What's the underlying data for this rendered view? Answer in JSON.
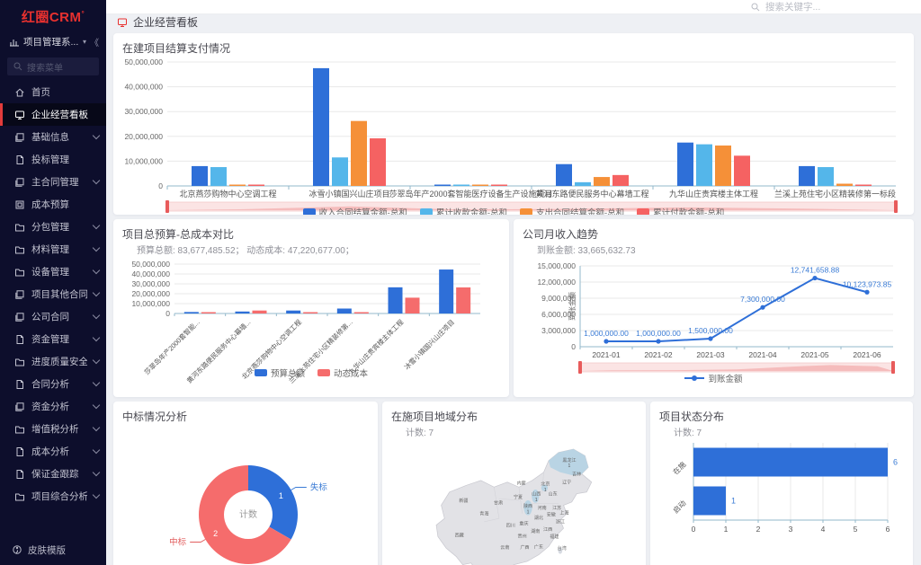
{
  "app": {
    "logo_text": "红圈CRM",
    "logo_degree": "°"
  },
  "sidebar": {
    "workspace": {
      "label": "项目管理系...",
      "collapse_glyph": "《"
    },
    "search_placeholder": "搜索菜单",
    "items": [
      {
        "label": "首页",
        "icon": "home-icon",
        "arrow": false,
        "active": false
      },
      {
        "label": "企业经营看板",
        "icon": "dashboard-icon",
        "arrow": false,
        "active": true
      },
      {
        "label": "基础信息",
        "icon": "layers-icon",
        "arrow": true,
        "active": false
      },
      {
        "label": "投标管理",
        "icon": "doc-icon",
        "arrow": false,
        "active": false
      },
      {
        "label": "主合同管理",
        "icon": "layers-icon",
        "arrow": true,
        "active": false
      },
      {
        "label": "成本预算",
        "icon": "budget-icon",
        "arrow": false,
        "active": false
      },
      {
        "label": "分包管理",
        "icon": "folder-icon",
        "arrow": true,
        "active": false
      },
      {
        "label": "材料管理",
        "icon": "folder-icon",
        "arrow": true,
        "active": false
      },
      {
        "label": "设备管理",
        "icon": "folder-icon",
        "arrow": true,
        "active": false
      },
      {
        "label": "项目其他合同",
        "icon": "layers-icon",
        "arrow": true,
        "active": false
      },
      {
        "label": "公司合同",
        "icon": "layers-icon",
        "arrow": true,
        "active": false
      },
      {
        "label": "资金管理",
        "icon": "doc-icon",
        "arrow": true,
        "active": false
      },
      {
        "label": "进度质量安全",
        "icon": "folder-icon",
        "arrow": true,
        "active": false
      },
      {
        "label": "合同分析",
        "icon": "doc-icon",
        "arrow": true,
        "active": false
      },
      {
        "label": "资金分析",
        "icon": "layers-icon",
        "arrow": true,
        "active": false
      },
      {
        "label": "增值税分析",
        "icon": "folder-icon",
        "arrow": true,
        "active": false
      },
      {
        "label": "成本分析",
        "icon": "doc-icon",
        "arrow": true,
        "active": false
      },
      {
        "label": "保证金跟踪",
        "icon": "doc-icon",
        "arrow": true,
        "active": false
      },
      {
        "label": "项目综合分析",
        "icon": "folder-icon",
        "arrow": true,
        "active": false
      }
    ],
    "footer": {
      "label": "皮肤模版",
      "icon": "palette-icon"
    }
  },
  "header": {
    "search_placeholder": "搜索关键字..."
  },
  "tab": {
    "label": "企业经营看板",
    "icon": "dashboard-icon"
  },
  "colors": {
    "blue": "#2e6fd8",
    "light_blue": "#54b6ea",
    "orange": "#f59038",
    "red": "#f56262",
    "pink_zoom": "#f9d9d9",
    "zoom_handle": "#e85b5b",
    "axis": "#93b9cb",
    "grid": "#e8e8e8",
    "sidebar_bg": "#0d0e2c",
    "active_red": "#e23b3b",
    "map_base": "#e2e2e6",
    "map_hl": "#b9d4e4"
  },
  "chart_data": [
    {
      "type": "bar",
      "title": "在建项目结算支付情况",
      "categories": [
        "北京燕莎购物中心空调工程",
        "冰雪小镇国兴山庄项目",
        "莎翠岛年产2000套智能医疗设备生产设施项目",
        "黄河东路便民服务中心幕墙工程",
        "九华山庄贵宾楼主体工程",
        "兰溪上苑住宅小区精装修第一标段"
      ],
      "series": [
        {
          "name": "收入合同结算金额-总和",
          "color": "#2e6fd8",
          "values": [
            8000000,
            47500000,
            200000,
            8800000,
            17500000,
            8000000
          ]
        },
        {
          "name": "累计收款金额-总和",
          "color": "#54b6ea",
          "values": [
            7600000,
            11500000,
            200000,
            1500000,
            16800000,
            7600000
          ]
        },
        {
          "name": "支出合同结算金额-总和",
          "color": "#f59038",
          "values": [
            500000,
            26200000,
            200000,
            3600000,
            16300000,
            900000
          ]
        },
        {
          "name": "累计付款金额-总和",
          "color": "#f56262",
          "values": [
            150000,
            19200000,
            200000,
            4400000,
            12200000,
            200000
          ]
        }
      ],
      "ylim": [
        0,
        50000000
      ],
      "ystep": 10000000,
      "grid": true,
      "datazoom": true,
      "legend_position": "bottom"
    },
    {
      "type": "bar",
      "title": "项目总预算-总成本对比",
      "subtitle": "预算总额: 83,677,485.52；  动态成本: 47,220,677.00；",
      "categories": [
        "莎翠岛年产2000套智能...",
        "黄河东路便民服务中心幕墙...",
        "北京燕莎购物中心空调工程",
        "兰溪上苑住宅小区精装修第...",
        "九华山庄贵宾楼主体工程",
        "冰雪小镇国兴山庄项目"
      ],
      "series": [
        {
          "name": "预算总额",
          "color": "#2e6fd8",
          "values": [
            1500000,
            2000000,
            3000000,
            5000000,
            26500000,
            44500000
          ]
        },
        {
          "name": "动态成本",
          "color": "#f56c6c",
          "values": [
            300000,
            3000000,
            500000,
            1000000,
            16000000,
            26400000
          ]
        }
      ],
      "ylim": [
        0,
        50000000
      ],
      "ystep": 10000000,
      "grid": true,
      "rotated_labels": true,
      "legend_position": "bottom"
    },
    {
      "type": "line",
      "title": "公司月收入趋势",
      "subtitle": "到账金额: 33,665,632.73",
      "x": [
        "2021-01",
        "2021-02",
        "2021-03",
        "2021-04",
        "2021-05",
        "2021-06"
      ],
      "series": [
        {
          "name": "到账金额",
          "color": "#2e6fd8",
          "values": [
            1000000.0,
            1000000.0,
            1500000.0,
            7300000.0,
            12741658.88,
            10123973.85
          ],
          "labels": [
            "1,000,000.00",
            "1,000,000.00",
            "1,500,000.00",
            "7,300,000.00",
            "12,741,658.88",
            "10,123,973.85"
          ]
        }
      ],
      "ylabel": "到账金额",
      "ylim": [
        0,
        15000000
      ],
      "ystep": 3000000,
      "grid": true,
      "datazoom": true,
      "legend_position": "bottom"
    },
    {
      "type": "pie",
      "title": "中标情况分析",
      "center_label": "计数",
      "slices": [
        {
          "name": "失标",
          "value": 1,
          "color": "#2e6fd8",
          "label_color": "#3a7bd5"
        },
        {
          "name": "中标",
          "value": 2,
          "color": "#f56c6c",
          "label_color": "#e25f5f"
        }
      ]
    },
    {
      "type": "map",
      "title": "在施项目地域分布",
      "subtitle": "计数: 7",
      "regions": [
        {
          "name": "新疆",
          "x": 55,
          "y": 76
        },
        {
          "name": "西藏",
          "x": 50,
          "y": 118
        },
        {
          "name": "青海",
          "x": 80,
          "y": 92
        },
        {
          "name": "甘肃",
          "x": 97,
          "y": 79
        },
        {
          "name": "内蒙",
          "x": 125,
          "y": 55
        },
        {
          "name": "黑龙江",
          "x": 183,
          "y": 27,
          "value": 1,
          "highlighted": true
        },
        {
          "name": "吉林",
          "x": 192,
          "y": 44
        },
        {
          "name": "辽宁",
          "x": 180,
          "y": 54
        },
        {
          "name": "北京",
          "x": 154,
          "y": 56,
          "value": 1,
          "highlighted": true
        },
        {
          "name": "山西",
          "x": 143,
          "y": 68,
          "value": 1,
          "highlighted": true
        },
        {
          "name": "陕西",
          "x": 133,
          "y": 83,
          "value": 1,
          "highlighted": true
        },
        {
          "name": "宁夏",
          "x": 121,
          "y": 72
        },
        {
          "name": "山东",
          "x": 163,
          "y": 68
        },
        {
          "name": "河南",
          "x": 150,
          "y": 85
        },
        {
          "name": "江苏",
          "x": 168,
          "y": 85
        },
        {
          "name": "安徽",
          "x": 161,
          "y": 93
        },
        {
          "name": "上海",
          "x": 177,
          "y": 91
        },
        {
          "name": "四川",
          "x": 112,
          "y": 106
        },
        {
          "name": "重庆",
          "x": 128,
          "y": 104
        },
        {
          "name": "湖北",
          "x": 146,
          "y": 97
        },
        {
          "name": "浙江",
          "x": 172,
          "y": 102
        },
        {
          "name": "湖南",
          "x": 142,
          "y": 113
        },
        {
          "name": "江西",
          "x": 157,
          "y": 111
        },
        {
          "name": "福建",
          "x": 165,
          "y": 120
        },
        {
          "name": "贵州",
          "x": 126,
          "y": 119
        },
        {
          "name": "云南",
          "x": 105,
          "y": 133
        },
        {
          "name": "广西",
          "x": 129,
          "y": 133
        },
        {
          "name": "广东",
          "x": 146,
          "y": 132
        },
        {
          "name": "台湾",
          "x": 174,
          "y": 134
        }
      ]
    },
    {
      "type": "bar",
      "orientation": "horizontal",
      "title": "项目状态分布",
      "subtitle": "计数: 7",
      "categories": [
        "在施",
        "启动"
      ],
      "values": [
        6,
        1
      ],
      "color": "#2e6fd8",
      "xlim": [
        0,
        6
      ],
      "xticks": [
        0,
        1,
        2,
        3,
        4,
        5,
        6
      ],
      "grid": true
    }
  ]
}
